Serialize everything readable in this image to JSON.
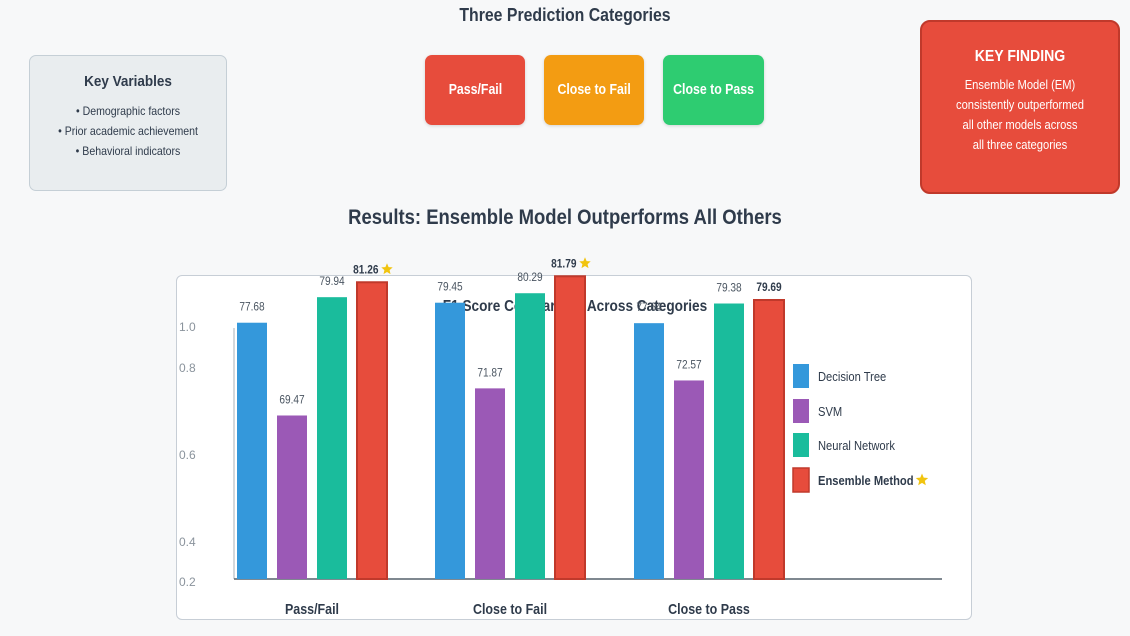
{
  "header": {
    "title": "Three Prediction Categories"
  },
  "key_variables": {
    "title": "Key Variables",
    "items": [
      "• Demographic factors",
      "• Prior academic achievement",
      "• Behavioral indicators"
    ]
  },
  "categories_buttons": [
    {
      "label": "Pass/Fail",
      "color": "#e74c3c"
    },
    {
      "label": "Close to Fail",
      "color": "#f39c12"
    },
    {
      "label": "Close to Pass",
      "color": "#2ecc71"
    }
  ],
  "key_finding": {
    "title": "KEY FINDING",
    "lines": [
      "Ensemble Model (EM)",
      "consistently outperformed",
      "all other models across",
      "all three categories"
    ]
  },
  "results_title": "Results: Ensemble Model Outperforms All Others",
  "chart_data": {
    "type": "bar",
    "title": "F1 Score Comparison Across Categories",
    "xlabel": "",
    "ylabel": "",
    "y_ticks": [
      "1.0",
      "0.8",
      "0.6",
      "0.4",
      "0.2"
    ],
    "categories": [
      "Pass/Fail",
      "Close to Fail",
      "Close to Pass"
    ],
    "series": [
      {
        "name": "Decision Tree",
        "color": "#3498db",
        "values": [
          77.68,
          79.45,
          77.64
        ]
      },
      {
        "name": "SVM",
        "color": "#9b59b6",
        "values": [
          69.47,
          71.87,
          72.57
        ]
      },
      {
        "name": "Neural Network",
        "color": "#1abc9c",
        "values": [
          79.94,
          80.29,
          79.38
        ]
      },
      {
        "name": "Ensemble Method",
        "color": "#e74c3c",
        "values": [
          81.26,
          81.79,
          79.69
        ],
        "star": true
      }
    ],
    "data_labels": [
      [
        "77.68",
        "79.45",
        "77.64"
      ],
      [
        "69.47",
        "71.87",
        "72.57"
      ],
      [
        "79.94",
        "80.29",
        "79.38"
      ],
      [
        "81.26",
        "81.79",
        "79.69"
      ]
    ],
    "star_on_labels": [
      true,
      true,
      false
    ],
    "star_icon": "star-icon",
    "star_color": "#f1c40f",
    "grid": false,
    "legend_position": "right"
  }
}
